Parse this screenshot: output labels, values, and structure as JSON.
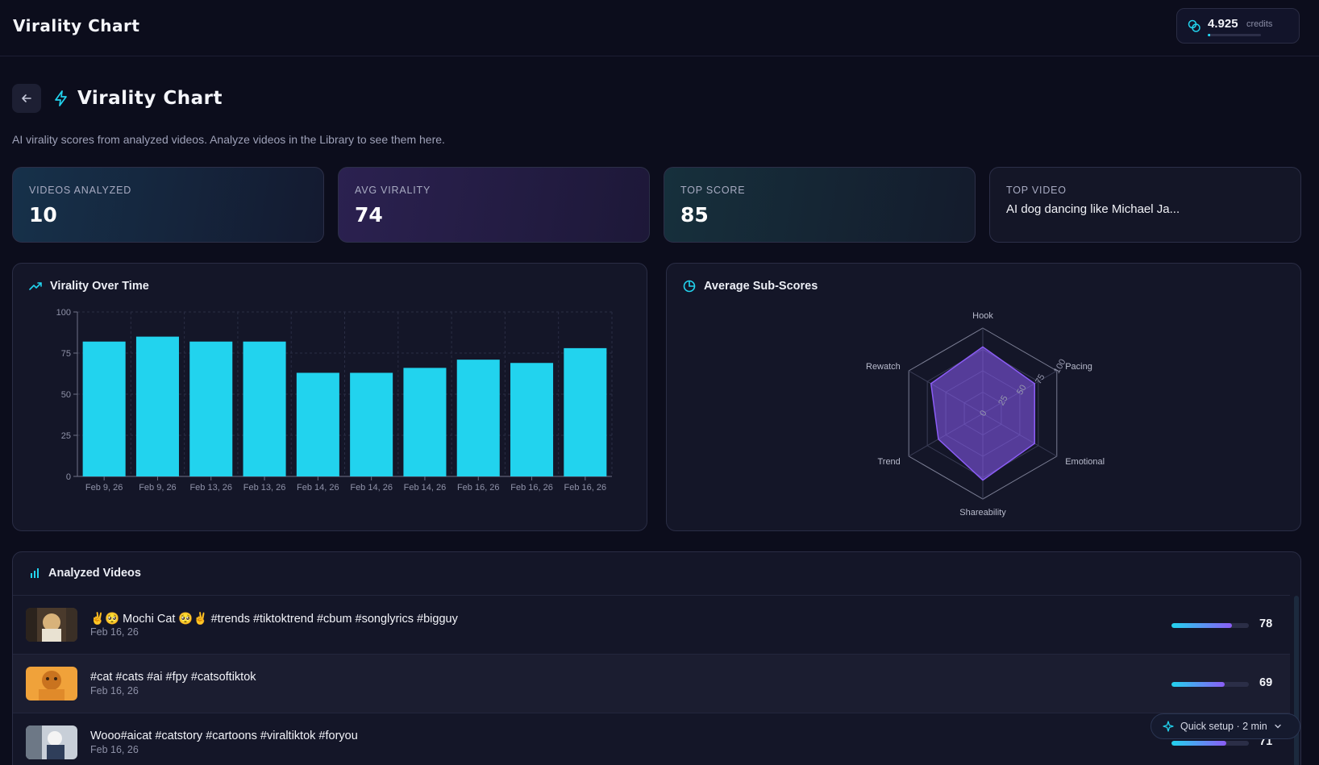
{
  "header": {
    "app_title": "Virality Chart",
    "credits_value": "4.925",
    "credits_label": "credits",
    "credits_fill": 0.04
  },
  "page": {
    "title": "Virality Chart",
    "subtitle": "AI virality scores from analyzed videos. Analyze videos in the Library to see them here."
  },
  "stats": [
    {
      "label": "VIDEOS ANALYZED",
      "value": "10"
    },
    {
      "label": "AVG VIRALITY",
      "value": "74"
    },
    {
      "label": "TOP SCORE",
      "value": "85"
    },
    {
      "label": "TOP VIDEO",
      "value": "AI dog dancing like Michael Ja..."
    }
  ],
  "panels": {
    "time_title": "Virality Over Time",
    "sub_title": "Average Sub-Scores",
    "videos_title": "Analyzed Videos"
  },
  "chart_data": [
    {
      "type": "bar",
      "title": "Virality Over Time",
      "categories": [
        "Feb 9, 26",
        "Feb 9, 26",
        "Feb 13, 26",
        "Feb 13, 26",
        "Feb 14, 26",
        "Feb 14, 26",
        "Feb 14, 26",
        "Feb 16, 26",
        "Feb 16, 26",
        "Feb 16, 26"
      ],
      "values": [
        82,
        85,
        82,
        82,
        63,
        63,
        66,
        71,
        69,
        78
      ],
      "ylim": [
        0,
        100
      ],
      "yticks": [
        0,
        25,
        50,
        75,
        100
      ],
      "grid": true,
      "color": "#22d3ee"
    },
    {
      "type": "radar",
      "title": "Average Sub-Scores",
      "axes": [
        "Hook",
        "Pacing",
        "Emotional",
        "Shareability",
        "Trend",
        "Rewatch"
      ],
      "values": [
        78,
        70,
        70,
        78,
        60,
        70
      ],
      "rlim": [
        0,
        100
      ],
      "rticks": [
        0,
        25,
        50,
        75,
        100
      ],
      "color": "#8b5cf6"
    }
  ],
  "videos": [
    {
      "title": "✌️🥺 Mochi Cat 🥺✌️ #trends #tiktoktrend #cbum #songlyrics #bigguy",
      "date": "Feb 16, 26",
      "score": 78
    },
    {
      "title": "#cat #cats #ai #fpy #catsoftiktok",
      "date": "Feb 16, 26",
      "score": 69
    },
    {
      "title": "Wooo#aicat #catstory #cartoons #viraltiktok #foryou",
      "date": "Feb 16, 26",
      "score": 71
    }
  ],
  "quick_setup": {
    "label": "Quick setup · 2 min"
  }
}
